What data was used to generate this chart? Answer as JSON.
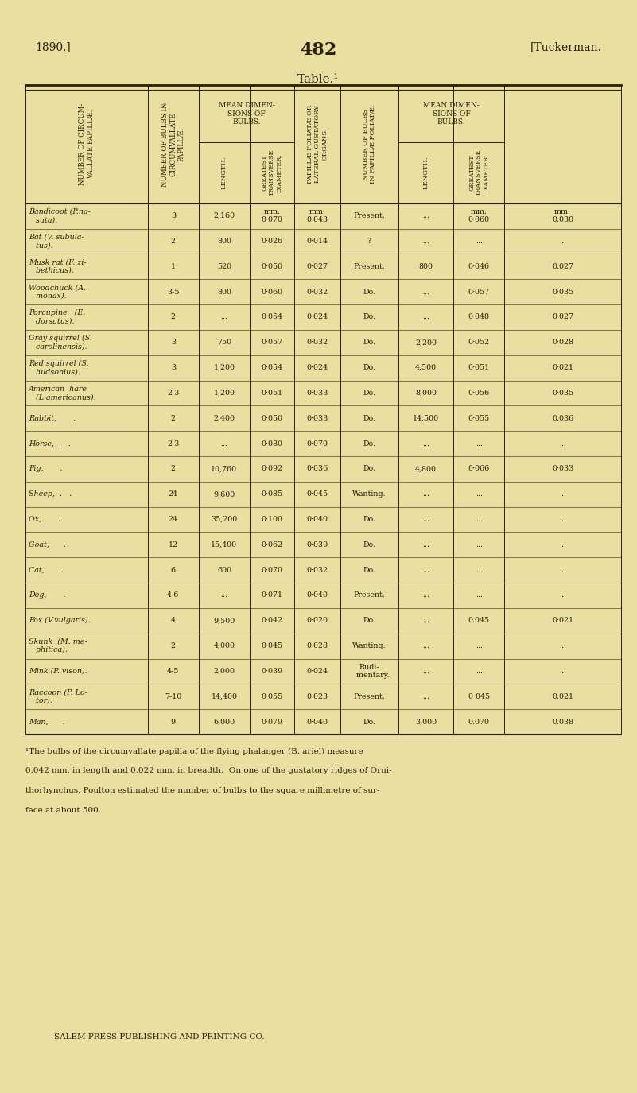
{
  "page_header_left": "1890.]",
  "page_header_center": "482",
  "page_header_right": "[Tuckerman.",
  "table_title": "Table.¹",
  "bg_color": "#e8dfa0",
  "text_color": "#2a1f0a",
  "rows": [
    [
      "Bandicoot (P.na-\n   suta).",
      "3",
      "2,160",
      "mm.\n0·070",
      "mm.\n0·043",
      "Present.",
      "...",
      "mm.\n0·060",
      "mm.\n0.030"
    ],
    [
      "Bat (V. subula-\n   tus).",
      "2",
      "800",
      "0·026",
      "0·014",
      "?",
      "...",
      "...",
      "..."
    ],
    [
      "Musk rat (F. zi-\n   bethicus).",
      "1",
      "520",
      "0·050",
      "0·027",
      "Present.",
      "800",
      "0·046",
      "0.027"
    ],
    [
      "Woodchuck (A.\n   monax).",
      "3-5",
      "800",
      "0·060",
      "0·032",
      "Do.",
      "...",
      "0·057",
      "0·035"
    ],
    [
      "Porcupine   (E.\n   dorsatus).",
      "2",
      "...",
      "0·054",
      "0·024",
      "Do.",
      "...",
      "0·048",
      "0·027"
    ],
    [
      "Gray squirrel (S.\n   carolinensis).",
      "3",
      "750",
      "0·057",
      "0·032",
      "Do.",
      "2,200",
      "0·052",
      "0·028"
    ],
    [
      "Red squirrel (S.\n   hudsonius).",
      "3",
      "1,200",
      "0·054",
      "0·024",
      "Do.",
      "4,500",
      "0·051",
      "0·021"
    ],
    [
      "American  hare\n   (L.americanus).",
      "2-3",
      "1,200",
      "0·051",
      "0·033",
      "Do.",
      "8,000",
      "0·056",
      "0·035"
    ],
    [
      "Rabbit,       .",
      "2",
      "2,400",
      "0·050",
      "0·033",
      "Do.",
      "14,500",
      "0·055",
      "0.036"
    ],
    [
      "Horse,  .   .",
      "2-3",
      "...",
      "0·080",
      "0·070",
      "Do.",
      "...",
      "...",
      "..."
    ],
    [
      "Pig,       .",
      "2",
      "10,760",
      "0·092",
      "0·036",
      "Do.",
      "4,800",
      "0·066",
      "0·033"
    ],
    [
      "Sheep,  .   .",
      "24",
      "9,600",
      "0·085",
      "0·045",
      "Wanting.",
      "...",
      "...",
      "..."
    ],
    [
      "Ox,       .",
      "24",
      "35,200",
      "0·100",
      "0·040",
      "Do.",
      "...",
      "...",
      "..."
    ],
    [
      "Goat,      .",
      "12",
      "15,400",
      "0·062",
      "0·030",
      "Do.",
      "...",
      "...",
      "..."
    ],
    [
      "Cat,       .",
      "6",
      "600",
      "0·070",
      "0·032",
      "Do.",
      "...",
      "...",
      "..."
    ],
    [
      "Dog,       .",
      "4-6",
      "...",
      "0·071",
      "0·040",
      "Present.",
      "...",
      "...",
      "..."
    ],
    [
      "Fox (V.vulgaris).",
      "4",
      "9,500",
      "0·042",
      "0·020",
      "Do.",
      "...",
      "0.045",
      "0·021"
    ],
    [
      "Skunk  (M. me-\n   phitica).",
      "2",
      "4,000",
      "0·045",
      "0·028",
      "Wanting.",
      "...",
      "...",
      "..."
    ],
    [
      "Mink (P. vison).",
      "4-5",
      "2,000",
      "0·039",
      "0·024",
      "Rudi-\n   mentary.",
      "...",
      "...",
      "..."
    ],
    [
      "Raccoon (P. Lo-\n   tor).",
      "7-10",
      "14,400",
      "0·055",
      "0·023",
      "Present.",
      "...",
      "0 045",
      "0.021"
    ],
    [
      "Man,      .",
      "9",
      "6,000",
      "0·079",
      "0·040",
      "Do.",
      "3,000",
      "0.070",
      "0.038"
    ]
  ],
  "footnote_line1": "¹The bulbs of the circumvallate papilla of the flying phalanger (B. ariel) measure",
  "footnote_line2": "0.042 mm. in length and 0.022 mm. in breadth.  On one of the gustatory ridges of Orni-",
  "footnote_line3": "thorhynchus, Poulton estimated the number of bulbs to the square millimetre of sur-",
  "footnote_line4": "face at about 500.",
  "publisher": "SALEM PRESS PUBLISHING AND PRINTING CO."
}
